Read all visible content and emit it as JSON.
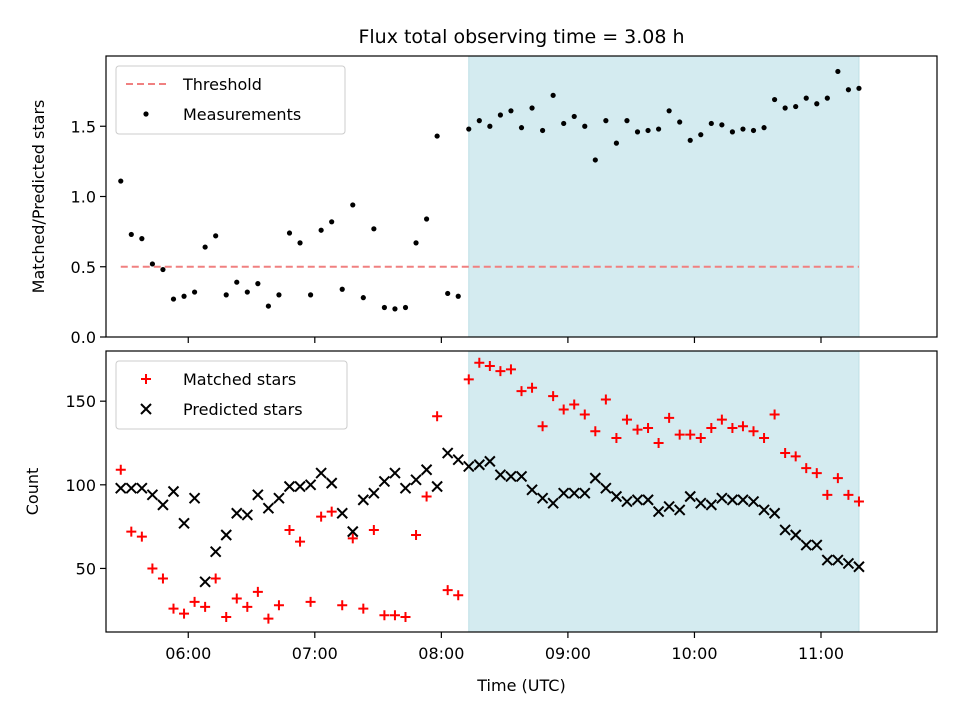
{
  "chart_data": [
    {
      "type": "scatter",
      "title": "Flux total observing time = 3.08 h",
      "xlabel": "",
      "ylabel": "Matched/Predicted stars",
      "xlim": [
        "05:21",
        "11:55"
      ],
      "ylim": [
        0,
        2.0
      ],
      "yticks": [
        0.0,
        0.5,
        1.0,
        1.5
      ],
      "ytick_labels": [
        "0.0",
        "0.5",
        "1.0",
        "1.5"
      ],
      "grid": false,
      "legend_position": "top-left",
      "shaded_region": {
        "x_start": "08:13",
        "x_end": "11:18",
        "color": "#d4ebf0"
      },
      "threshold": {
        "name": "Threshold",
        "y": 0.5,
        "x_start": "05:28",
        "x_end": "11:18",
        "color": "#f08080",
        "style": "dashed"
      },
      "series": [
        {
          "name": "Measurements",
          "marker": "dot",
          "color": "#000000",
          "x": [
            "05:28",
            "05:33",
            "05:38",
            "05:43",
            "05:48",
            "05:53",
            "05:58",
            "06:03",
            "06:08",
            "06:13",
            "06:18",
            "06:23",
            "06:28",
            "06:33",
            "06:38",
            "06:43",
            "06:48",
            "06:53",
            "06:58",
            "07:03",
            "07:08",
            "07:13",
            "07:18",
            "07:23",
            "07:28",
            "07:33",
            "07:38",
            "07:43",
            "07:48",
            "07:53",
            "07:58",
            "08:03",
            "08:08",
            "08:13",
            "08:18",
            "08:23",
            "08:28",
            "08:33",
            "08:38",
            "08:43",
            "08:48",
            "08:53",
            "08:58",
            "09:03",
            "09:08",
            "09:13",
            "09:18",
            "09:23",
            "09:28",
            "09:33",
            "09:38",
            "09:43",
            "09:48",
            "09:53",
            "09:58",
            "10:03",
            "10:08",
            "10:13",
            "10:18",
            "10:23",
            "10:28",
            "10:33",
            "10:38",
            "10:43",
            "10:48",
            "10:53",
            "10:58",
            "11:03",
            "11:08",
            "11:13",
            "11:18"
          ],
          "y": [
            1.11,
            0.73,
            0.7,
            0.52,
            0.48,
            0.27,
            0.29,
            0.32,
            0.64,
            0.72,
            0.3,
            0.39,
            0.32,
            0.38,
            0.22,
            0.3,
            0.74,
            0.67,
            0.3,
            0.76,
            0.82,
            0.34,
            0.94,
            0.28,
            0.77,
            0.21,
            0.2,
            0.21,
            0.67,
            0.84,
            1.43,
            0.31,
            0.29,
            1.48,
            1.54,
            1.5,
            1.58,
            1.61,
            1.49,
            1.63,
            1.47,
            1.72,
            1.52,
            1.57,
            1.5,
            1.26,
            1.54,
            1.38,
            1.54,
            1.46,
            1.47,
            1.48,
            1.61,
            1.53,
            1.4,
            1.44,
            1.52,
            1.51,
            1.46,
            1.48,
            1.47,
            1.49,
            1.69,
            1.63,
            1.64,
            1.7,
            1.66,
            1.7,
            1.89,
            1.76,
            1.77
          ]
        }
      ]
    },
    {
      "type": "scatter",
      "title": "",
      "xlabel": "Time (UTC)",
      "ylabel": "Count",
      "xlim": [
        "05:21",
        "11:55"
      ],
      "ylim": [
        12,
        180
      ],
      "yticks": [
        50,
        100,
        150
      ],
      "ytick_labels": [
        "50",
        "100",
        "150"
      ],
      "xticks": [
        "06:00",
        "07:00",
        "08:00",
        "09:00",
        "10:00",
        "11:00"
      ],
      "xtick_labels": [
        "06:00",
        "07:00",
        "08:00",
        "09:00",
        "10:00",
        "11:00"
      ],
      "grid": false,
      "legend_position": "top-left",
      "shaded_region": {
        "x_start": "08:13",
        "x_end": "11:18",
        "color": "#d4ebf0"
      },
      "series": [
        {
          "name": "Matched stars",
          "marker": "plus",
          "color": "#ff0000",
          "x": [
            "05:28",
            "05:33",
            "05:38",
            "05:43",
            "05:48",
            "05:53",
            "05:58",
            "06:03",
            "06:08",
            "06:13",
            "06:18",
            "06:23",
            "06:28",
            "06:33",
            "06:38",
            "06:43",
            "06:48",
            "06:53",
            "06:58",
            "07:03",
            "07:08",
            "07:13",
            "07:18",
            "07:23",
            "07:28",
            "07:33",
            "07:38",
            "07:43",
            "07:48",
            "07:53",
            "07:58",
            "08:03",
            "08:08",
            "08:13",
            "08:18",
            "08:23",
            "08:28",
            "08:33",
            "08:38",
            "08:43",
            "08:48",
            "08:53",
            "08:58",
            "09:03",
            "09:08",
            "09:13",
            "09:18",
            "09:23",
            "09:28",
            "09:33",
            "09:38",
            "09:43",
            "09:48",
            "09:53",
            "09:58",
            "10:03",
            "10:08",
            "10:13",
            "10:18",
            "10:23",
            "10:28",
            "10:33",
            "10:38",
            "10:43",
            "10:48",
            "10:53",
            "10:58",
            "11:03",
            "11:08",
            "11:13",
            "11:18"
          ],
          "y": [
            109,
            72,
            69,
            50,
            44,
            26,
            23,
            30,
            27,
            44,
            21,
            32,
            27,
            36,
            20,
            28,
            73,
            66,
            30,
            81,
            84,
            28,
            68,
            26,
            73,
            22,
            22,
            21,
            70,
            93,
            141,
            37,
            34,
            163,
            173,
            171,
            168,
            169,
            156,
            158,
            135,
            153,
            145,
            148,
            142,
            132,
            151,
            128,
            139,
            133,
            134,
            125,
            140,
            130,
            130,
            128,
            134,
            139,
            134,
            135,
            132,
            128,
            142,
            119,
            117,
            110,
            107,
            94,
            104,
            94,
            90
          ]
        },
        {
          "name": "Predicted stars",
          "marker": "x",
          "color": "#000000",
          "x": [
            "05:28",
            "05:33",
            "05:38",
            "05:43",
            "05:48",
            "05:53",
            "05:58",
            "06:03",
            "06:08",
            "06:13",
            "06:18",
            "06:23",
            "06:28",
            "06:33",
            "06:38",
            "06:43",
            "06:48",
            "06:53",
            "06:58",
            "07:03",
            "07:08",
            "07:13",
            "07:18",
            "07:23",
            "07:28",
            "07:33",
            "07:38",
            "07:43",
            "07:48",
            "07:53",
            "07:58",
            "08:03",
            "08:08",
            "08:13",
            "08:18",
            "08:23",
            "08:28",
            "08:33",
            "08:38",
            "08:43",
            "08:48",
            "08:53",
            "08:58",
            "09:03",
            "09:08",
            "09:13",
            "09:18",
            "09:23",
            "09:28",
            "09:33",
            "09:38",
            "09:43",
            "09:48",
            "09:53",
            "09:58",
            "10:03",
            "10:08",
            "10:13",
            "10:18",
            "10:23",
            "10:28",
            "10:33",
            "10:38",
            "10:43",
            "10:48",
            "10:53",
            "10:58",
            "11:03",
            "11:08",
            "11:13",
            "11:18"
          ],
          "y": [
            98,
            98,
            98,
            94,
            88,
            96,
            77,
            92,
            42,
            60,
            70,
            83,
            82,
            94,
            86,
            92,
            99,
            99,
            100,
            107,
            101,
            83,
            72,
            91,
            95,
            102,
            107,
            98,
            103,
            109,
            99,
            119,
            115,
            111,
            112,
            114,
            106,
            105,
            105,
            97,
            92,
            89,
            95,
            95,
            95,
            104,
            98,
            93,
            90,
            91,
            91,
            84,
            87,
            85,
            93,
            89,
            88,
            92,
            91,
            91,
            90,
            85,
            83,
            73,
            70,
            64,
            64,
            55,
            55,
            53,
            51
          ]
        }
      ]
    }
  ]
}
